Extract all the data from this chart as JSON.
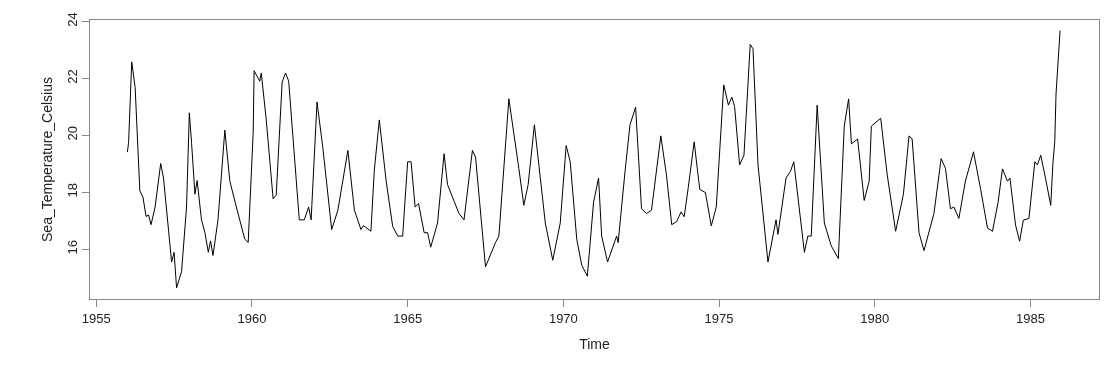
{
  "chart_data": {
    "type": "line",
    "xlabel": "Time",
    "ylabel": "Sea_Temperature_Celsius",
    "x": [
      1956.0,
      1956.04,
      1956.14,
      1956.25,
      1956.4,
      1956.5,
      1956.6,
      1956.68,
      1956.76,
      1956.89,
      1957.07,
      1957.16,
      1957.37,
      1957.42,
      1957.5,
      1957.58,
      1957.74,
      1957.9,
      1957.99,
      1958.06,
      1958.17,
      1958.24,
      1958.38,
      1958.49,
      1958.6,
      1958.67,
      1958.75,
      1958.91,
      1959.13,
      1959.29,
      1959.5,
      1959.77,
      1959.88,
      1960.04,
      1960.07,
      1960.25,
      1960.3,
      1960.46,
      1960.68,
      1960.78,
      1960.97,
      1961.08,
      1961.18,
      1961.52,
      1961.68,
      1961.82,
      1961.9,
      1962.09,
      1962.28,
      1962.56,
      1962.76,
      1963.08,
      1963.29,
      1963.5,
      1963.58,
      1963.82,
      1963.93,
      1964.09,
      1964.31,
      1964.52,
      1964.68,
      1964.84,
      1965.0,
      1965.11,
      1965.24,
      1965.35,
      1965.53,
      1965.64,
      1965.74,
      1965.96,
      1966.17,
      1966.28,
      1966.65,
      1966.81,
      1967.08,
      1967.18,
      1967.5,
      1967.82,
      1967.93,
      1968.25,
      1968.57,
      1968.73,
      1968.87,
      1969.07,
      1969.42,
      1969.66,
      1969.9,
      1970.09,
      1970.22,
      1970.43,
      1970.59,
      1970.77,
      1970.97,
      1971.13,
      1971.23,
      1971.42,
      1971.71,
      1971.76,
      1971.98,
      1972.14,
      1972.32,
      1972.51,
      1972.67,
      1972.83,
      1973.13,
      1973.31,
      1973.48,
      1973.64,
      1973.78,
      1973.88,
      1974.01,
      1974.2,
      1974.38,
      1974.56,
      1974.75,
      1974.91,
      1975.15,
      1975.3,
      1975.41,
      1975.5,
      1975.66,
      1975.8,
      1976.0,
      1976.09,
      1976.25,
      1976.57,
      1976.83,
      1976.89,
      1977.15,
      1977.29,
      1977.4,
      1977.74,
      1977.85,
      1977.96,
      1978.15,
      1978.38,
      1978.6,
      1978.83,
      1979.02,
      1979.16,
      1979.25,
      1979.45,
      1979.66,
      1979.82,
      1979.89,
      1980.19,
      1980.4,
      1980.67,
      1980.92,
      1981.1,
      1981.2,
      1981.42,
      1981.58,
      1981.9,
      1982.13,
      1982.27,
      1982.43,
      1982.54,
      1982.7,
      1982.91,
      1983.17,
      1983.4,
      1983.62,
      1983.78,
      1983.96,
      1984.1,
      1984.26,
      1984.34,
      1984.52,
      1984.65,
      1984.77,
      1984.95,
      1985.14,
      1985.22,
      1985.33,
      1985.49,
      1985.65,
      1985.72,
      1985.78,
      1985.82,
      1985.95
    ],
    "series": [
      {
        "color": "#000000",
        "values": [
          19.41,
          19.75,
          22.58,
          21.67,
          18.05,
          17.83,
          17.15,
          17.2,
          16.86,
          17.48,
          19.01,
          18.5,
          16.12,
          15.55,
          15.89,
          14.64,
          15.21,
          17.48,
          20.79,
          19.75,
          17.93,
          18.41,
          17.03,
          16.58,
          15.89,
          16.29,
          15.78,
          17.03,
          20.18,
          18.39,
          17.48,
          16.35,
          16.24,
          20.09,
          22.27,
          21.9,
          22.19,
          20.54,
          17.77,
          17.9,
          21.87,
          22.19,
          21.9,
          17.03,
          17.03,
          17.48,
          17.03,
          21.17,
          19.53,
          16.69,
          17.37,
          19.47,
          17.37,
          16.69,
          16.83,
          16.63,
          18.78,
          20.54,
          18.39,
          16.8,
          16.46,
          16.46,
          19.07,
          19.07,
          17.48,
          17.6,
          16.58,
          16.58,
          16.07,
          16.92,
          19.35,
          18.27,
          17.25,
          17.03,
          19.47,
          19.24,
          15.38,
          16.23,
          16.46,
          21.28,
          18.84,
          17.54,
          18.27,
          20.37,
          16.92,
          15.61,
          16.92,
          19.64,
          19.07,
          16.35,
          15.44,
          15.05,
          17.65,
          18.5,
          16.46,
          15.55,
          16.46,
          16.23,
          18.73,
          20.37,
          20.99,
          17.42,
          17.25,
          17.37,
          19.98,
          18.61,
          16.86,
          16.97,
          17.31,
          17.14,
          18.16,
          19.77,
          18.1,
          17.99,
          16.82,
          17.48,
          21.77,
          21.06,
          21.34,
          21.0,
          18.96,
          19.3,
          23.19,
          23.04,
          18.96,
          15.55,
          17.03,
          16.52,
          18.5,
          18.73,
          19.07,
          15.89,
          16.46,
          16.46,
          21.06,
          16.92,
          16.12,
          15.67,
          20.32,
          21.28,
          19.7,
          19.87,
          17.71,
          18.39,
          20.32,
          20.6,
          18.61,
          16.63,
          17.93,
          19.98,
          19.87,
          16.58,
          15.95,
          17.25,
          19.18,
          18.84,
          17.42,
          17.48,
          17.08,
          18.39,
          19.42,
          18.1,
          16.74,
          16.63,
          17.65,
          18.82,
          18.39,
          18.5,
          16.85,
          16.28,
          17.02,
          17.08,
          19.07,
          18.96,
          19.3,
          18.45,
          17.54,
          19.01,
          19.8,
          21.45,
          23.68
        ]
      }
    ],
    "xlim": [
      1954.8,
      1987.2
    ],
    "xticks": [
      1955,
      1960,
      1965,
      1970,
      1975,
      1980,
      1985
    ],
    "ylim": [
      14.25,
      24.05
    ],
    "yticks": [
      16,
      18,
      20,
      22,
      24
    ],
    "marker": "none",
    "line_style": "solid"
  }
}
